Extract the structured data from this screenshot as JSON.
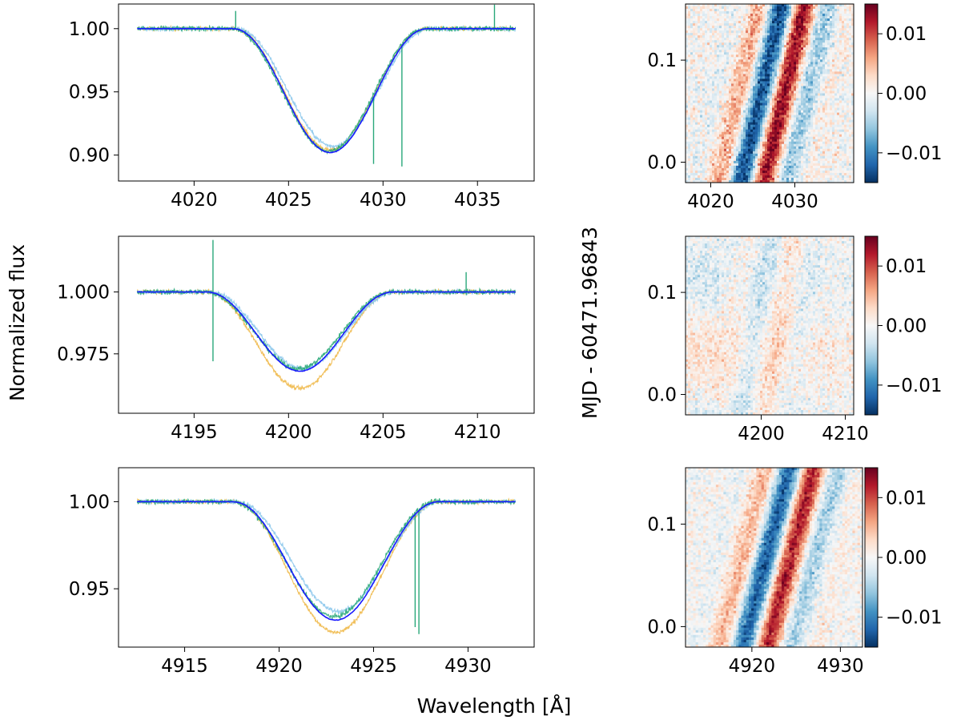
{
  "figure": {
    "xlabel": "Wavelength [Å]",
    "ylabel_left": "Normalized flux",
    "ylabel_right": "MJD - 60471.96843"
  },
  "colors": {
    "series_orange": "#f0b94a",
    "series_lightblue": "#8cc8ec",
    "series_green": "#2aa87a",
    "model": "#1a1aff",
    "frame": "#000000"
  },
  "chart_data": [
    {
      "type": "line",
      "id": "profile-4026",
      "xlim": [
        4016,
        4038
      ],
      "ylim": [
        0.8795,
        1.0195
      ],
      "xticks": [
        4020,
        4025,
        4030,
        4035
      ],
      "yticks": [
        0.9,
        0.95,
        1.0
      ],
      "ytick_labels": [
        "0.90",
        "0.95",
        "1.00"
      ],
      "line": {
        "center": 4027.2,
        "half_width": 5.2,
        "depth_model": 0.098,
        "depth_orange": 0.096,
        "depth_blue": 0.093,
        "depth_green": 0.097
      },
      "spikes": [
        {
          "x": 4022.2,
          "y": 1.014
        },
        {
          "x": 4029.5,
          "y": 0.893
        },
        {
          "x": 4031.0,
          "y": 0.891
        },
        {
          "x": 4035.9,
          "y": 1.019
        }
      ],
      "series_names": [
        "orange",
        "lightblue",
        "green",
        "model"
      ]
    },
    {
      "type": "line",
      "id": "profile-4200",
      "xlim": [
        4191,
        4213
      ],
      "ylim": [
        0.951,
        1.0225
      ],
      "xticks": [
        4195,
        4200,
        4205,
        4210
      ],
      "yticks": [
        0.975,
        1.0
      ],
      "ytick_labels": [
        "0.975",
        "1.000"
      ],
      "line": {
        "center": 4200.6,
        "half_width": 5.0,
        "depth_model": 0.032,
        "depth_orange": 0.039,
        "depth_blue": 0.031,
        "depth_green": 0.031
      },
      "spikes": [
        {
          "x": 4196.0,
          "y": 1.021
        },
        {
          "x": 4196.0,
          "y": 0.972
        },
        {
          "x": 4209.4,
          "y": 1.008
        }
      ],
      "series_names": [
        "orange",
        "lightblue",
        "green",
        "model"
      ]
    },
    {
      "type": "line",
      "id": "profile-4922",
      "xlim": [
        4911.5,
        4933.5
      ],
      "ylim": [
        0.9165,
        1.0195
      ],
      "xticks": [
        4915,
        4920,
        4925,
        4930
      ],
      "yticks": [
        0.95,
        1.0
      ],
      "ytick_labels": [
        "0.95",
        "1.00"
      ],
      "line": {
        "center": 4923.0,
        "half_width": 5.5,
        "depth_model": 0.068,
        "depth_orange": 0.075,
        "depth_blue": 0.063,
        "depth_green": 0.066
      },
      "spikes": [
        {
          "x": 4927.4,
          "y": 0.924
        },
        {
          "x": 4927.2,
          "y": 0.928
        }
      ],
      "series_names": [
        "orange",
        "lightblue",
        "green",
        "model"
      ]
    },
    {
      "type": "heatmap",
      "id": "residuals-4026",
      "xlim": [
        4017,
        4037
      ],
      "ylim": [
        -0.02,
        0.155
      ],
      "xticks": [
        4020,
        4030
      ],
      "yticks": [
        0.0,
        0.1
      ],
      "ytick_labels": [
        "0.0",
        "0.1"
      ],
      "colorbar": {
        "vmin": -0.015,
        "vmax": 0.015,
        "ticks": [
          -0.01,
          0.0,
          0.01
        ],
        "labels": [
          "−0.01",
          "0.00",
          "0.01"
        ]
      },
      "pattern": {
        "amp": 1.0,
        "center": 4027.2,
        "drift": 28.0,
        "noise": 0.25
      }
    },
    {
      "type": "heatmap",
      "id": "residuals-4200",
      "xlim": [
        4191,
        4211
      ],
      "ylim": [
        -0.02,
        0.155
      ],
      "xticks": [
        4200,
        4210
      ],
      "yticks": [
        0.0,
        0.1
      ],
      "ytick_labels": [
        "0.0",
        "0.1"
      ],
      "colorbar": {
        "vmin": -0.015,
        "vmax": 0.015,
        "ticks": [
          -0.01,
          0.0,
          0.01
        ],
        "labels": [
          "−0.01",
          "0.00",
          "0.01"
        ]
      },
      "pattern": {
        "amp": 0.18,
        "center": 4200.6,
        "drift": 20.0,
        "noise": 0.22
      }
    },
    {
      "type": "heatmap",
      "id": "residuals-4922",
      "xlim": [
        4912.5,
        4932.5
      ],
      "ylim": [
        -0.02,
        0.155
      ],
      "xticks": [
        4920,
        4930
      ],
      "yticks": [
        0.0,
        0.1
      ],
      "ytick_labels": [
        "0.0",
        "0.1"
      ],
      "colorbar": {
        "vmin": -0.015,
        "vmax": 0.015,
        "ticks": [
          -0.01,
          0.0,
          0.01
        ],
        "labels": [
          "−0.01",
          "0.00",
          "0.01"
        ]
      },
      "pattern": {
        "amp": 0.9,
        "center": 4922.8,
        "drift": 30.0,
        "noise": 0.2
      }
    }
  ]
}
